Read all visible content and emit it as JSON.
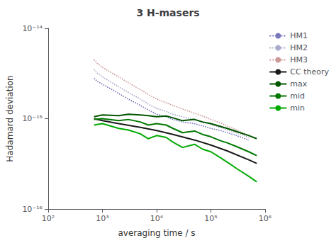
{
  "chart_data": {
    "type": "line",
    "title": "3 H-masers",
    "xlabel": "averaging time / s",
    "ylabel": "Hadamard deviation",
    "log": true,
    "grid": false,
    "legend": "upper right",
    "xlim": [
      100,
      1000000
    ],
    "ylim": [
      1e-16,
      1e-14
    ],
    "xticks": [
      {
        "value": 100,
        "label": "10²"
      },
      {
        "value": 1000,
        "label": "10³"
      },
      {
        "value": 10000,
        "label": "10⁴"
      },
      {
        "value": 100000,
        "label": "10⁵"
      },
      {
        "value": 1000000,
        "label": "10⁶"
      }
    ],
    "yticks": [
      {
        "value": 1e-16,
        "label": "10⁻¹⁶"
      },
      {
        "value": 1e-15,
        "label": "10⁻¹⁵"
      },
      {
        "value": 1e-14,
        "label": "10⁻¹⁴"
      }
    ],
    "series": [
      {
        "name": "HM1",
        "color": "#7777bb",
        "line_style": "dotted",
        "x": [
          700,
          800,
          1000,
          1500,
          2000,
          3000,
          5000,
          7000,
          10000,
          15000,
          20000,
          30000,
          50000,
          70000,
          100000,
          150000,
          200000,
          300000,
          500000
        ],
        "values": [
          2.8e-15,
          2.6e-15,
          2.4e-15,
          2.1e-15,
          1.9e-15,
          1.65e-15,
          1.4e-15,
          1.25e-15,
          1.12e-15,
          1.05e-15,
          9.8e-16,
          9.2e-16,
          8.8e-16,
          8.3e-16,
          7.8e-16,
          7.4e-16,
          7e-16,
          6.5e-16,
          5.8e-16
        ]
      },
      {
        "name": "HM2",
        "color": "#aaaacc",
        "line_style": "dotted",
        "x": [
          700,
          800,
          1000,
          1500,
          2000,
          3000,
          5000,
          7000,
          10000,
          15000,
          20000,
          30000,
          50000,
          70000,
          100000,
          150000,
          200000,
          300000,
          500000
        ],
        "values": [
          3.5e-15,
          3.2e-15,
          2.9e-15,
          2.5e-15,
          2.25e-15,
          1.95e-15,
          1.65e-15,
          1.45e-15,
          1.3e-15,
          1.2e-15,
          1.12e-15,
          1.05e-15,
          9.8e-16,
          9.2e-16,
          8.6e-16,
          8e-16,
          7.5e-16,
          7e-16,
          6.2e-16
        ]
      },
      {
        "name": "HM3",
        "color": "#cc9999",
        "line_style": "dotted",
        "x": [
          700,
          800,
          1000,
          1500,
          2000,
          3000,
          5000,
          7000,
          10000,
          15000,
          20000,
          30000,
          50000,
          70000,
          100000,
          150000,
          200000,
          300000,
          500000
        ],
        "values": [
          4.5e-15,
          4.1e-15,
          3.7e-15,
          3.2e-15,
          2.9e-15,
          2.5e-15,
          2.1e-15,
          1.85e-15,
          1.65e-15,
          1.5e-15,
          1.4e-15,
          1.28e-15,
          1.15e-15,
          1.07e-15,
          9.8e-16,
          9e-16,
          8.3e-16,
          7.5e-16,
          6.5e-16
        ]
      },
      {
        "name": "CC theory",
        "color": "#1a1a1a",
        "line_style": "solid",
        "x": [
          700,
          1000,
          2000,
          5000,
          10000,
          20000,
          50000,
          100000,
          200000,
          500000,
          700000
        ],
        "values": [
          1e-15,
          9.5e-16,
          8.8e-16,
          8e-16,
          7.4e-16,
          6.7e-16,
          5.8e-16,
          5.1e-16,
          4.4e-16,
          3.5e-16,
          3.2e-16
        ]
      },
      {
        "name": "max",
        "color": "#005500",
        "line_style": "solid",
        "x": [
          700,
          1000,
          2000,
          3000,
          5000,
          7000,
          10000,
          15000,
          20000,
          30000,
          50000,
          70000,
          100000,
          150000,
          200000,
          300000,
          500000,
          700000
        ],
        "values": [
          1.05e-15,
          1.1e-15,
          1.08e-15,
          1.12e-15,
          1.1e-15,
          1.08e-15,
          1.05e-15,
          1.07e-15,
          1.02e-15,
          9.5e-16,
          9.8e-16,
          9.2e-16,
          8.8e-16,
          8.2e-16,
          7.8e-16,
          7.2e-16,
          6.5e-16,
          6e-16
        ]
      },
      {
        "name": "mid",
        "color": "#007700",
        "line_style": "solid",
        "x": [
          700,
          1000,
          2000,
          3000,
          5000,
          7000,
          10000,
          15000,
          20000,
          30000,
          50000,
          70000,
          100000,
          150000,
          200000,
          300000,
          500000,
          700000
        ],
        "values": [
          9.8e-16,
          1e-15,
          9.5e-16,
          9.8e-16,
          9.2e-16,
          8.5e-16,
          8.8e-16,
          8.5e-16,
          7.8e-16,
          7e-16,
          7.3e-16,
          6.7e-16,
          6.3e-16,
          5.7e-16,
          5.4e-16,
          4.9e-16,
          4.3e-16,
          3.9e-16
        ]
      },
      {
        "name": "min",
        "color": "#00aa00",
        "line_style": "solid",
        "x": [
          700,
          1000,
          2000,
          3000,
          5000,
          7000,
          10000,
          15000,
          20000,
          30000,
          50000,
          70000,
          100000,
          150000,
          200000,
          300000,
          500000,
          700000
        ],
        "values": [
          8.5e-16,
          8.8e-16,
          7.8e-16,
          7.5e-16,
          6.8e-16,
          6e-16,
          6.5e-16,
          6.2e-16,
          5.5e-16,
          4.8e-16,
          5.2e-16,
          4.6e-16,
          4.3e-16,
          3.7e-16,
          3.3e-16,
          2.8e-16,
          2.3e-16,
          2e-16
        ]
      }
    ]
  }
}
